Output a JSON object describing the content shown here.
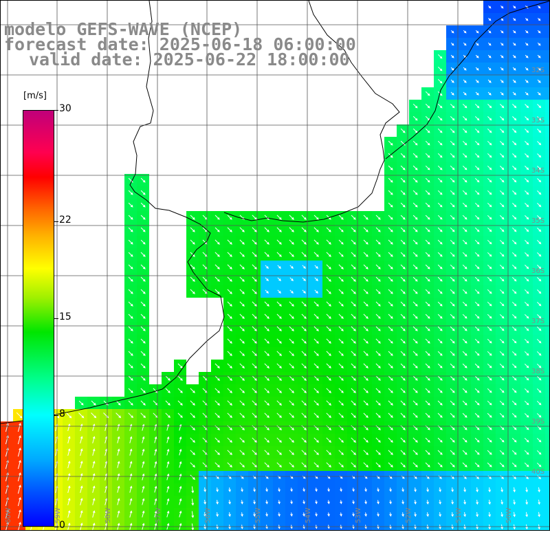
{
  "title": {
    "line1": "modelo GEFS-WAVE (NCEP)",
    "line2": "forecast date: 2025-06-18 06:00:00",
    "line3": "valid date: 2025-06-22 18:00:00"
  },
  "colorbar": {
    "unit": "[m/s]",
    "ticks": [
      "30",
      "22",
      "15",
      "8",
      "0"
    ],
    "tick_values": [
      30,
      22,
      15,
      8,
      0
    ],
    "vmin": 0,
    "vmax": 30
  },
  "grid": {
    "lat_labels": [
      "32S",
      "33S",
      "34S",
      "35S",
      "36S",
      "37S",
      "38S",
      "39S",
      "40S"
    ],
    "lon_labels": [
      "60W",
      "59W",
      "58W",
      "57W",
      "56W",
      "55W",
      "54W",
      "53W",
      "52W",
      "51W",
      "50W"
    ]
  },
  "colors": {
    "title_gray": "#8a8a8a",
    "land": "#ffffff",
    "coast": "#000000",
    "grid": "#555555",
    "arrow": "#ffffff"
  }
}
